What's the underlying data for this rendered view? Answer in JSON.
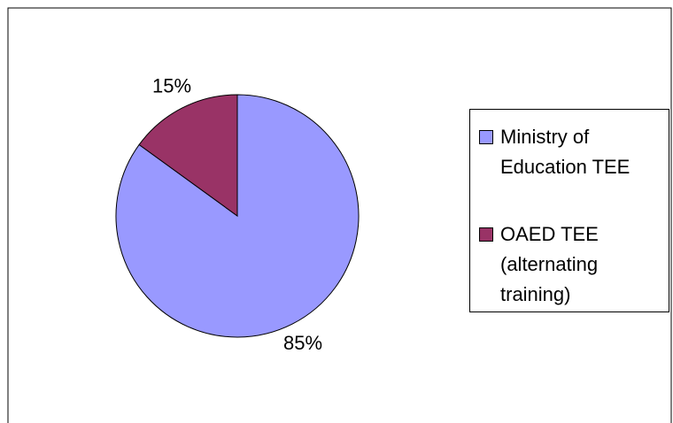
{
  "chart_data": {
    "type": "pie",
    "categories": [
      "Ministry of Education TEE",
      "OAED TEE (alternating training)"
    ],
    "values": [
      85,
      15
    ],
    "value_labels": [
      "85%",
      "15%"
    ],
    "colors": [
      "#9999ff",
      "#993366"
    ],
    "legend": "right"
  }
}
